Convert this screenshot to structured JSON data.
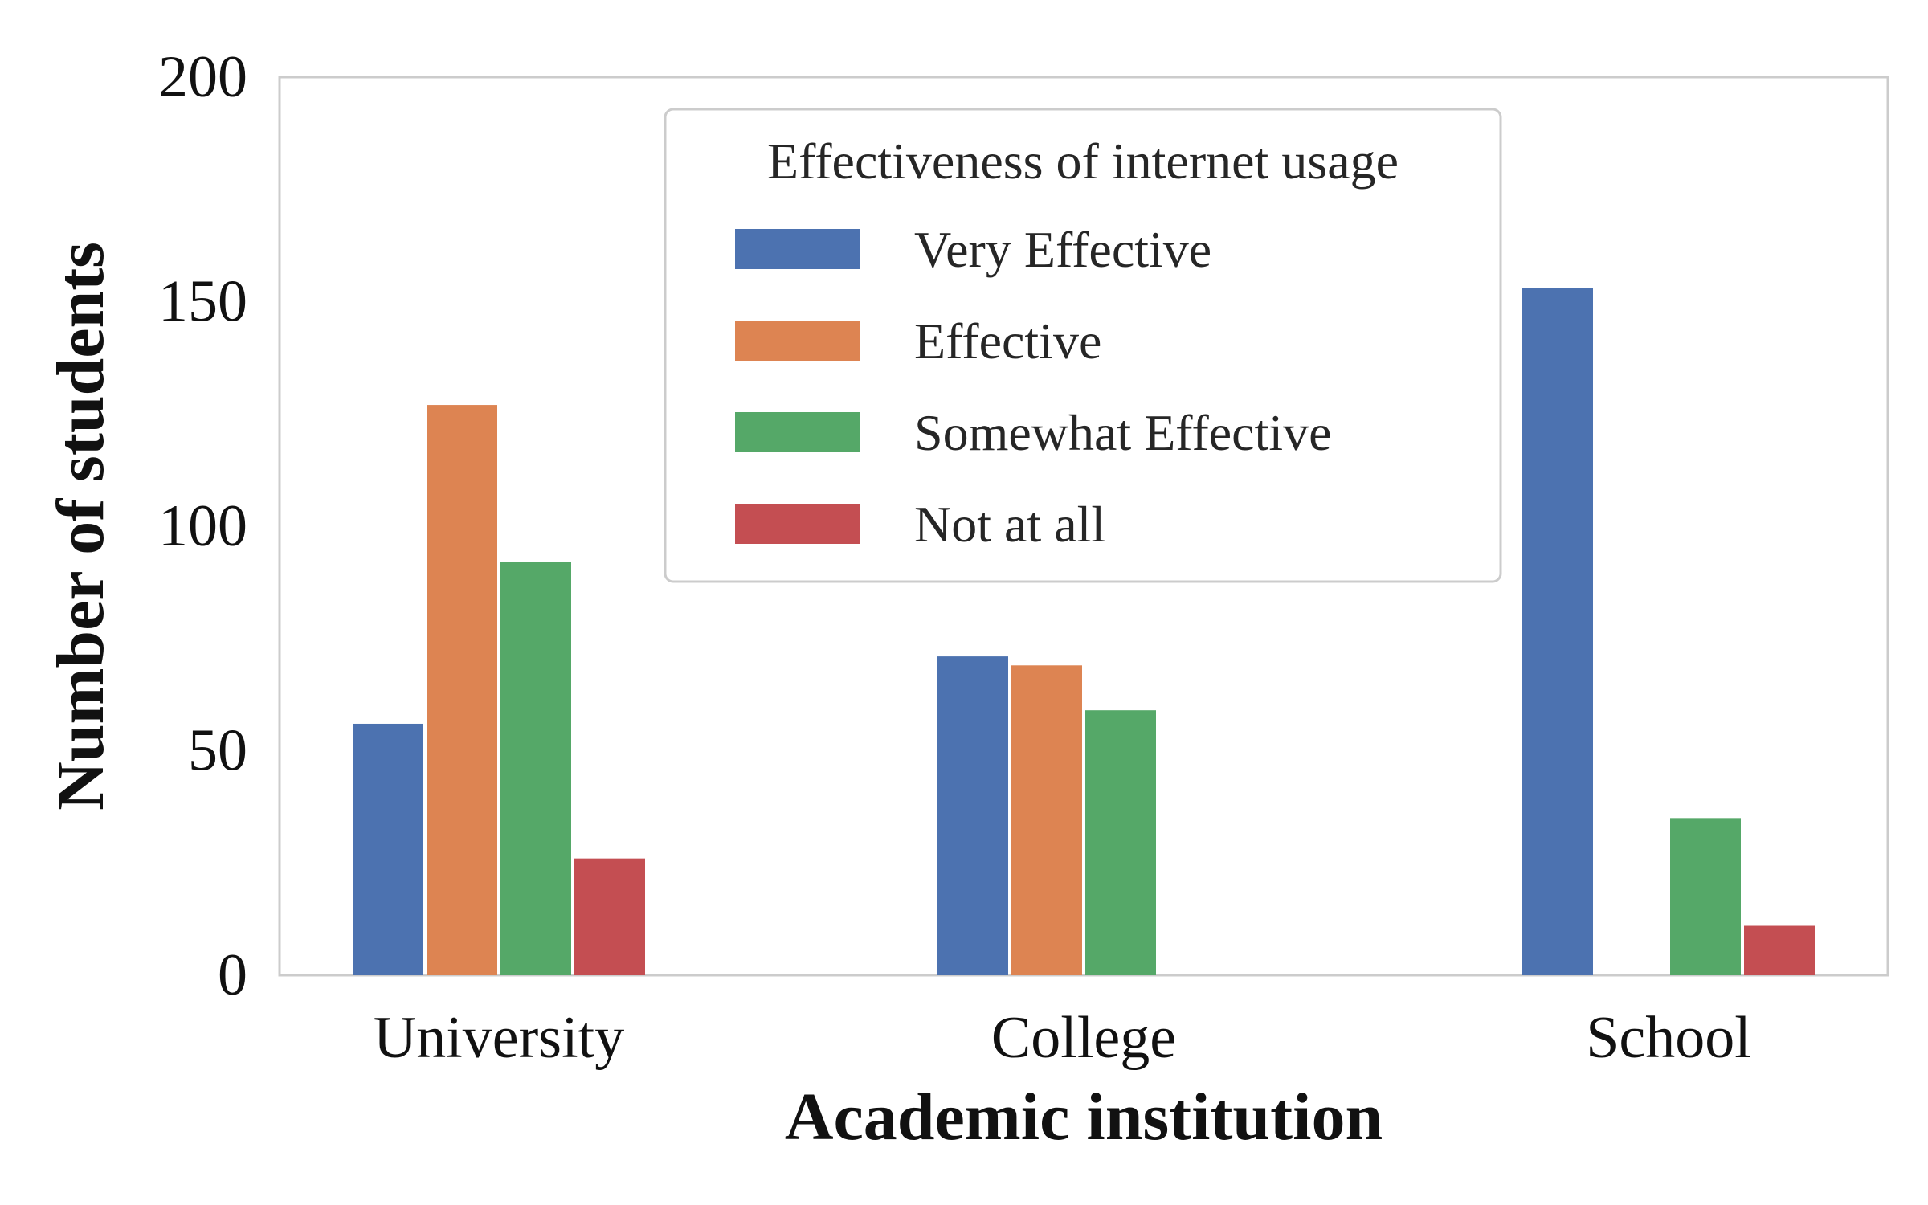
{
  "chart_data": {
    "type": "bar",
    "title": "",
    "xlabel": "Academic institution",
    "ylabel": "Number of students",
    "categories": [
      "University",
      "College",
      "School"
    ],
    "series": [
      {
        "name": "Very Effective",
        "color": "#4c72b0",
        "values": [
          56,
          71,
          153
        ]
      },
      {
        "name": "Effective",
        "color": "#dd8452",
        "values": [
          127,
          69,
          0
        ]
      },
      {
        "name": "Somewhat Effective",
        "color": "#55a868",
        "values": [
          92,
          59,
          35
        ]
      },
      {
        "name": "Not at all",
        "color": "#c44e52",
        "values": [
          26,
          0,
          11
        ]
      }
    ],
    "ylim": [
      0,
      200
    ],
    "yticks": [
      "0",
      "50",
      "100",
      "150",
      "200"
    ],
    "grid": false,
    "legend": {
      "title": "Effectiveness of internet usage",
      "placement": "upper-center"
    }
  }
}
